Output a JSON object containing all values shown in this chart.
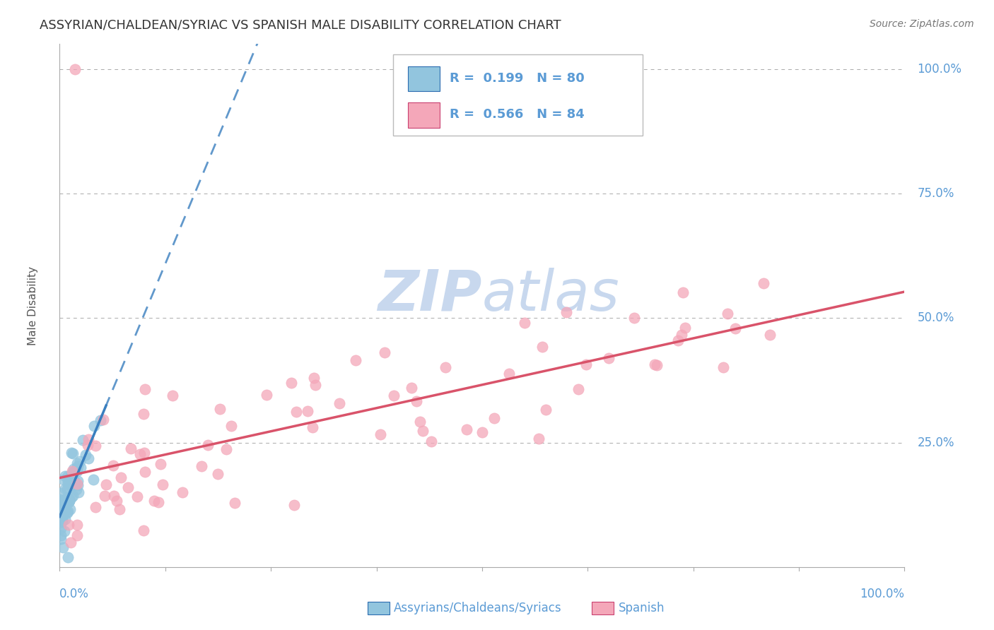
{
  "title": "ASSYRIAN/CHALDEAN/SYRIAC VS SPANISH MALE DISABILITY CORRELATION CHART",
  "source_text": "Source: ZipAtlas.com",
  "ylabel": "Male Disability",
  "r1": 0.199,
  "n1": 80,
  "r2": 0.566,
  "n2": 84,
  "color_blue": "#92C5DE",
  "color_pink": "#F4A7B9",
  "color_blue_line": "#3A7FBF",
  "color_pink_line": "#D9536A",
  "color_blue_dark": "#2B6CB0",
  "color_pink_dark": "#C94070",
  "background_color": "#FFFFFF",
  "grid_color": "#AAAAAA",
  "title_color": "#333333",
  "axis_label_color": "#5B9BD5",
  "watermark_color": "#C8D8EE",
  "xlim": [
    0.0,
    1.0
  ],
  "ylim": [
    0.0,
    1.05
  ],
  "seed_blue": 17,
  "seed_pink": 99
}
